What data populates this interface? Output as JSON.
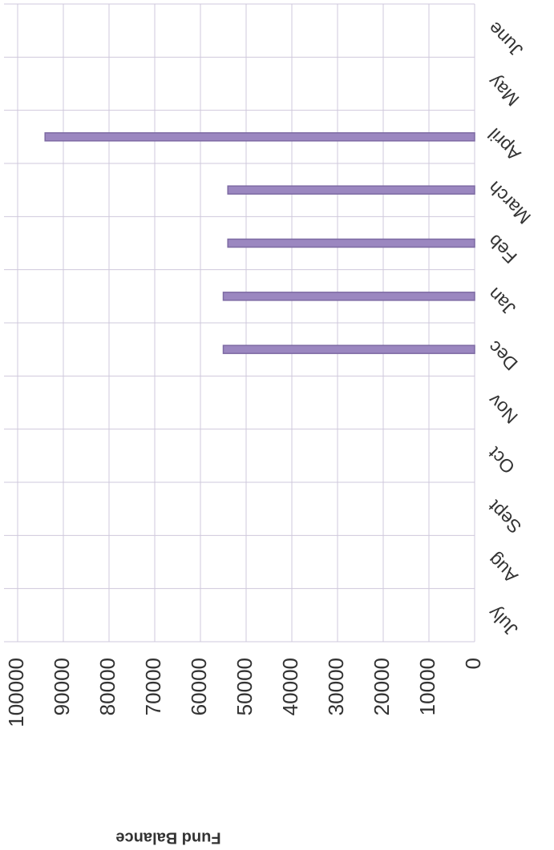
{
  "chart_data": {
    "type": "bar",
    "ylabel": "Fund Balance",
    "categories": [
      "July",
      "Aug",
      "Sept",
      "Oct",
      "Nov",
      "Dec",
      "Jan",
      "Feb",
      "March",
      "April",
      "May",
      "June"
    ],
    "values": [
      null,
      null,
      null,
      null,
      null,
      55000,
      55000,
      54000,
      54000,
      94000,
      null,
      null
    ],
    "color": "#9b87c0",
    "ylim": [
      0,
      100000
    ],
    "yticks": [
      0,
      10000,
      20000,
      30000,
      40000,
      50000,
      60000,
      70000,
      80000,
      90000,
      100000
    ],
    "grid": true
  }
}
